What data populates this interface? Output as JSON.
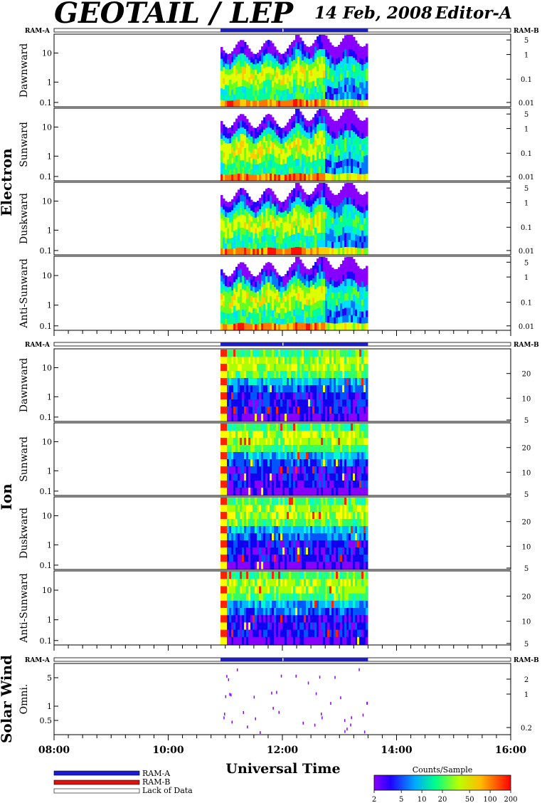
{
  "header": {
    "title": "GEOTAIL / LEP",
    "date": "14 Feb, 2008",
    "editor": "Editor-A"
  },
  "ram_labels": {
    "left": "RAM-A",
    "right": "RAM-B"
  },
  "groups": [
    {
      "name": "Electron",
      "panels": [
        "Dawnward",
        "Sunward",
        "Duskward",
        "Anti-Sunward"
      ]
    },
    {
      "name": "Ion",
      "panels": [
        "Dawnward",
        "Sunward",
        "Duskward",
        "Anti-Sunward"
      ]
    },
    {
      "name": "Solar Wind",
      "panels": [
        "Omni."
      ]
    }
  ],
  "chart_data": {
    "type": "heatmap",
    "xlabel": "Universal Time",
    "x_ticks": [
      "08:00",
      "10:00",
      "12:00",
      "14:00",
      "16:00"
    ],
    "x_range": [
      "08:00",
      "16:00"
    ],
    "data_interval": [
      "10:55",
      "13:30"
    ],
    "ram_bar": {
      "start": "10:55",
      "end": "13:30",
      "mode": "RAM-A",
      "gap": "12:00"
    },
    "left_axis": {
      "electron_ion_ticks": [
        "10",
        "1",
        "0.1"
      ],
      "solar_wind_ticks": [
        "5",
        "1",
        "0.5"
      ]
    },
    "right_axis": {
      "electron_ticks": [
        "5",
        "1",
        "0.1",
        "0.01"
      ],
      "ion_ticks": [
        "20",
        "10",
        "5"
      ],
      "solar_wind_ticks": [
        "2",
        "1",
        "0.2"
      ]
    },
    "legend": {
      "entries": [
        "RAM-A",
        "RAM-B",
        "Lack of Data"
      ],
      "colors": [
        "#1a1ad8",
        "#dd1111",
        "#ffffff"
      ]
    },
    "colorbar": {
      "title": "Counts/Sample",
      "ticks": [
        "2",
        "5",
        "10",
        "20",
        "50",
        "100",
        "200"
      ],
      "colors": [
        "#8800ff",
        "#0000ff",
        "#00ffff",
        "#00ff00",
        "#ffff00",
        "#ff8800",
        "#ff0000"
      ]
    }
  }
}
